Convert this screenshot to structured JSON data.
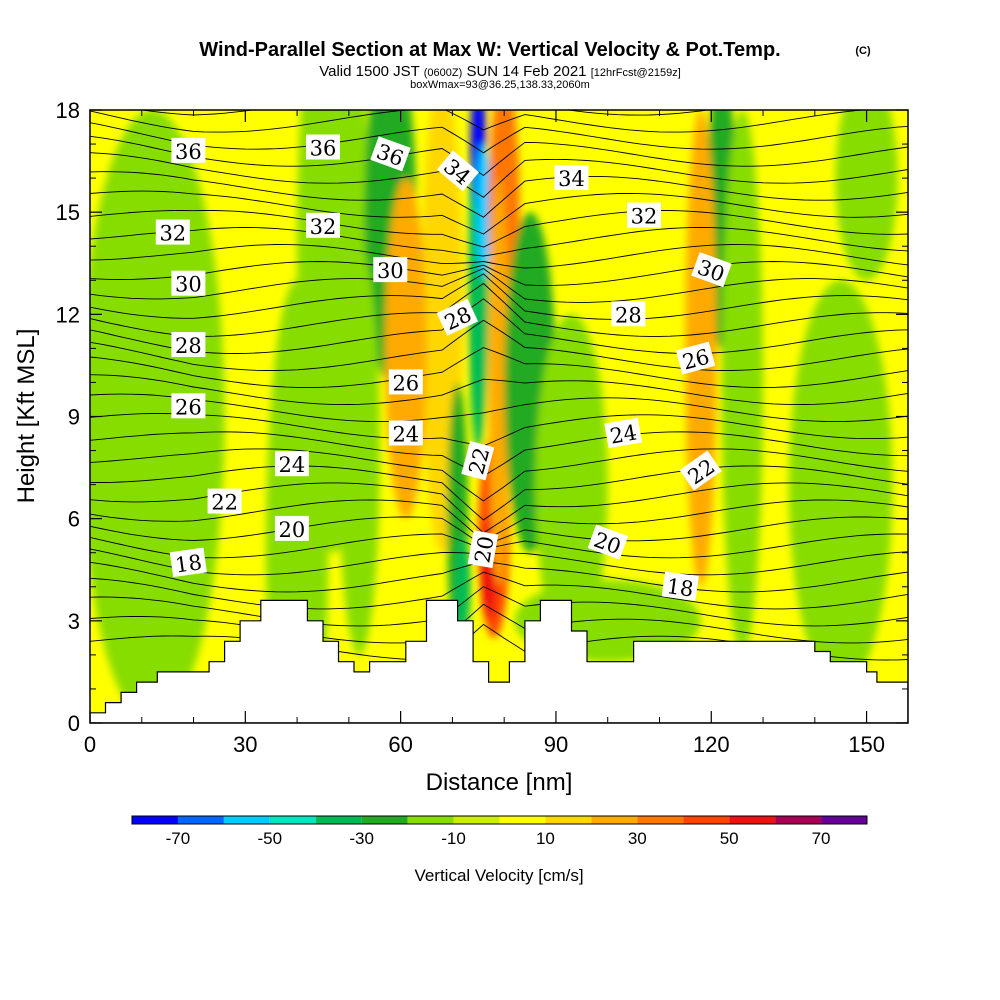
{
  "header": {
    "title": "Wind-Parallel Section at Max W: Vertical Velocity & Pot.Temp.",
    "copyright": "(C)",
    "valid_prefix": "Valid 1500 JST",
    "valid_utc": "(0600Z)",
    "valid_date": "SUN 14 Feb 2021",
    "forecast": "[12hrFcst@2159z]",
    "box_info": "boxWmax=93@36.25,138.33,2060m"
  },
  "chart_data": {
    "type": "heatmap",
    "xlabel": "Distance [nm]",
    "ylabel": "Height [Kft MSL]",
    "xlim": [
      0,
      158
    ],
    "ylim": [
      0,
      18
    ],
    "x_ticks": [
      "0",
      "30",
      "60",
      "90",
      "120",
      "150"
    ],
    "x_tick_values": [
      0,
      30,
      60,
      90,
      120,
      150
    ],
    "y_ticks": [
      "0",
      "3",
      "6",
      "9",
      "12",
      "15",
      "18"
    ],
    "y_tick_values": [
      0,
      3,
      6,
      9,
      12,
      15,
      18
    ],
    "colorbar": {
      "label": "Vertical Velocity [cm/s]",
      "tick_labels": [
        "-70",
        "-50",
        "-30",
        "-10",
        "10",
        "30",
        "50",
        "70"
      ],
      "tick_values": [
        -70,
        -50,
        -30,
        -10,
        10,
        30,
        50,
        70
      ],
      "levels": [
        -80,
        -70,
        -60,
        -50,
        -40,
        -30,
        -20,
        -10,
        0,
        10,
        20,
        30,
        40,
        50,
        60,
        70,
        80
      ],
      "colors": [
        "#0000ff",
        "#0066ff",
        "#00ccff",
        "#00e6c0",
        "#00bb55",
        "#22aa22",
        "#88dd00",
        "#ccee00",
        "#ffff00",
        "#ffd700",
        "#ffaa00",
        "#ff7700",
        "#ff4400",
        "#ee1111",
        "#aa0055",
        "#660099"
      ]
    },
    "terrain": [
      [
        0,
        0.3
      ],
      [
        3,
        0.3
      ],
      [
        3,
        0.6
      ],
      [
        6,
        0.6
      ],
      [
        6,
        0.9
      ],
      [
        9,
        0.9
      ],
      [
        9,
        1.2
      ],
      [
        13,
        1.2
      ],
      [
        13,
        1.5
      ],
      [
        23,
        1.5
      ],
      [
        23,
        1.8
      ],
      [
        26,
        1.8
      ],
      [
        26,
        2.4
      ],
      [
        29,
        2.4
      ],
      [
        29,
        3.0
      ],
      [
        33,
        3.0
      ],
      [
        33,
        3.6
      ],
      [
        42,
        3.6
      ],
      [
        42,
        3.0
      ],
      [
        45,
        3.0
      ],
      [
        45,
        2.4
      ],
      [
        48,
        2.4
      ],
      [
        48,
        1.8
      ],
      [
        51,
        1.8
      ],
      [
        51,
        1.5
      ],
      [
        54,
        1.5
      ],
      [
        54,
        1.8
      ],
      [
        61,
        1.8
      ],
      [
        61,
        2.4
      ],
      [
        65,
        2.4
      ],
      [
        65,
        3.6
      ],
      [
        71,
        3.6
      ],
      [
        71,
        3.0
      ],
      [
        74,
        3.0
      ],
      [
        74,
        1.8
      ],
      [
        77,
        1.8
      ],
      [
        77,
        1.2
      ],
      [
        81,
        1.2
      ],
      [
        81,
        1.8
      ],
      [
        84,
        1.8
      ],
      [
        84,
        3.0
      ],
      [
        87,
        3.0
      ],
      [
        87,
        3.6
      ],
      [
        93,
        3.6
      ],
      [
        93,
        2.7
      ],
      [
        96,
        2.7
      ],
      [
        96,
        1.8
      ],
      [
        105,
        1.8
      ],
      [
        105,
        2.4
      ],
      [
        140,
        2.4
      ],
      [
        140,
        2.1
      ],
      [
        143,
        2.1
      ],
      [
        143,
        1.8
      ],
      [
        150,
        1.8
      ],
      [
        150,
        1.5
      ],
      [
        152,
        1.5
      ],
      [
        152,
        1.2
      ],
      [
        158,
        1.2
      ]
    ],
    "contour_labels": [
      {
        "text": "36",
        "x": 19,
        "y": 16.8,
        "rot": 0
      },
      {
        "text": "36",
        "x": 45,
        "y": 16.9,
        "rot": 0
      },
      {
        "text": "36",
        "x": 58,
        "y": 16.7,
        "rot": 20
      },
      {
        "text": "34",
        "x": 71,
        "y": 16.2,
        "rot": 40
      },
      {
        "text": "34",
        "x": 93,
        "y": 16.0,
        "rot": 0
      },
      {
        "text": "32",
        "x": 16,
        "y": 14.4,
        "rot": 0
      },
      {
        "text": "32",
        "x": 45,
        "y": 14.6,
        "rot": 0
      },
      {
        "text": "32",
        "x": 107,
        "y": 14.9,
        "rot": 0
      },
      {
        "text": "30",
        "x": 19,
        "y": 12.9,
        "rot": 0
      },
      {
        "text": "30",
        "x": 58,
        "y": 13.3,
        "rot": 0
      },
      {
        "text": "30",
        "x": 120,
        "y": 13.3,
        "rot": 20
      },
      {
        "text": "28",
        "x": 19,
        "y": 11.1,
        "rot": 0
      },
      {
        "text": "28",
        "x": 71,
        "y": 11.9,
        "rot": -25
      },
      {
        "text": "28",
        "x": 104,
        "y": 12.0,
        "rot": 0
      },
      {
        "text": "26",
        "x": 19,
        "y": 9.3,
        "rot": 0
      },
      {
        "text": "26",
        "x": 61,
        "y": 10.0,
        "rot": 0
      },
      {
        "text": "26",
        "x": 117,
        "y": 10.7,
        "rot": -15
      },
      {
        "text": "24",
        "x": 39,
        "y": 7.6,
        "rot": 0
      },
      {
        "text": "24",
        "x": 61,
        "y": 8.5,
        "rot": 0
      },
      {
        "text": "24",
        "x": 103,
        "y": 8.5,
        "rot": -10
      },
      {
        "text": "22",
        "x": 26,
        "y": 6.5,
        "rot": 0
      },
      {
        "text": "22",
        "x": 75,
        "y": 7.7,
        "rot": -75
      },
      {
        "text": "22",
        "x": 118,
        "y": 7.4,
        "rot": -35
      },
      {
        "text": "20",
        "x": 39,
        "y": 5.7,
        "rot": 0
      },
      {
        "text": "20",
        "x": 76,
        "y": 5.1,
        "rot": -80
      },
      {
        "text": "20",
        "x": 100,
        "y": 5.3,
        "rot": 20
      },
      {
        "text": "18",
        "x": 19,
        "y": 4.7,
        "rot": -8
      },
      {
        "text": "18",
        "x": 114,
        "y": 4.0,
        "rot": 8
      }
    ]
  }
}
